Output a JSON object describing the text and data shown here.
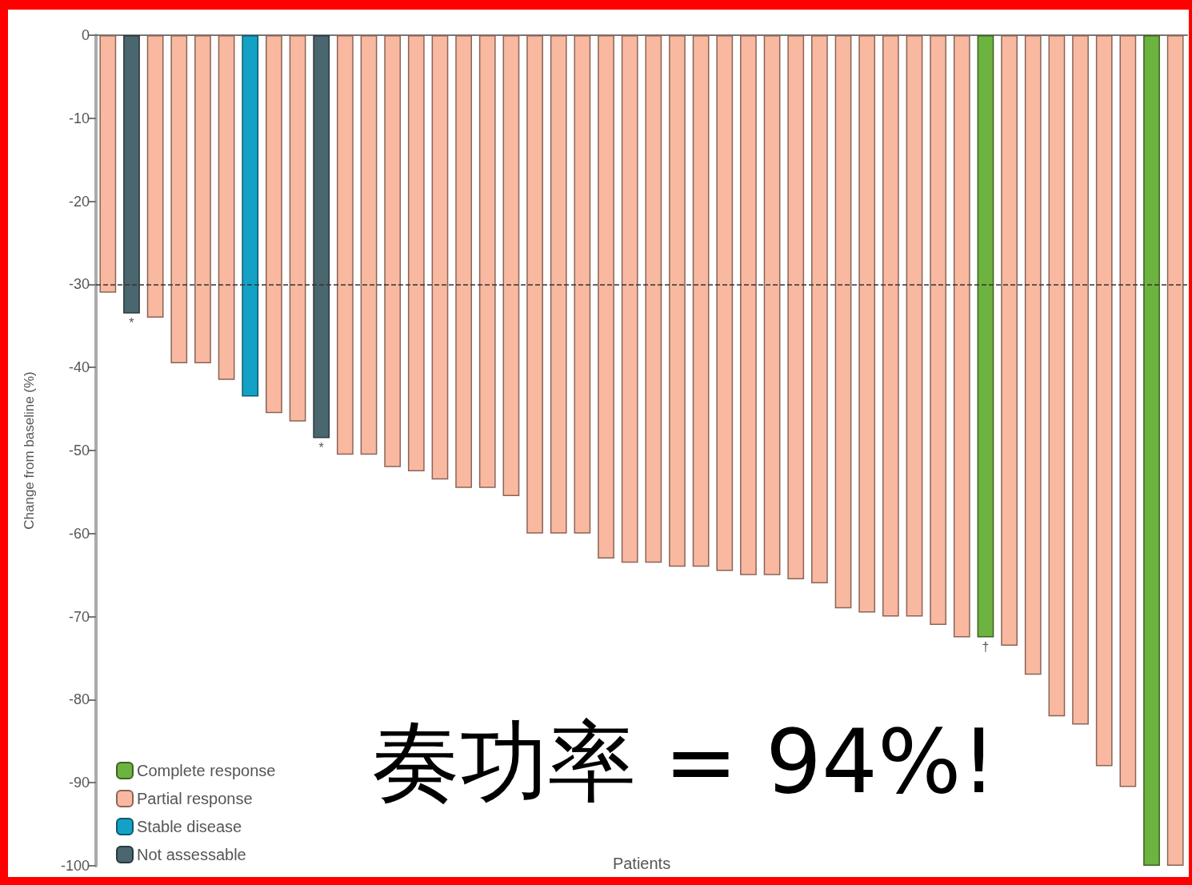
{
  "chart_data": {
    "type": "bar",
    "ylabel": "Change from baseline (%)",
    "xlabel": "Patients",
    "categories": [
      null,
      null,
      null,
      null,
      null,
      null,
      null,
      null,
      null,
      null,
      null,
      null,
      null,
      null,
      null,
      null,
      null,
      null,
      null,
      null,
      null,
      null,
      null,
      null,
      null,
      null,
      null,
      null,
      null,
      null,
      null,
      null,
      null,
      null,
      null,
      null,
      null,
      null,
      null,
      null,
      null,
      null,
      null,
      null,
      null,
      null
    ],
    "series": [
      {
        "name": "Complete response",
        "color": "#6db33f",
        "values": [
          null,
          null,
          null,
          null,
          null,
          null,
          null,
          null,
          null,
          null,
          null,
          null,
          null,
          null,
          null,
          null,
          null,
          null,
          null,
          null,
          null,
          null,
          null,
          null,
          null,
          null,
          null,
          null,
          null,
          null,
          null,
          null,
          null,
          null,
          null,
          null,
          null,
          -72.5,
          null,
          null,
          null,
          null,
          null,
          null,
          -100,
          null
        ],
        "value_labels": [
          null,
          null,
          null,
          null,
          null,
          null,
          null,
          null,
          null,
          null,
          null,
          null,
          null,
          null,
          null,
          null,
          null,
          null,
          null,
          null,
          null,
          null,
          null,
          null,
          null,
          null,
          null,
          null,
          null,
          null,
          null,
          null,
          null,
          null,
          null,
          null,
          null,
          "†",
          null,
          null,
          null,
          null,
          null,
          null,
          null,
          null
        ]
      },
      {
        "name": "Partial response",
        "color": "#f9b8a0",
        "values": [
          -31,
          null,
          -34,
          -39.5,
          -39.5,
          -41.5,
          null,
          -45.5,
          -46.5,
          null,
          -50.5,
          -50.5,
          -52,
          -52.5,
          -53.5,
          -54.5,
          -54.5,
          -55.5,
          -60,
          -60,
          -60,
          -63,
          -63.5,
          -63.5,
          -64,
          -64,
          -64.5,
          -65,
          -65,
          -65.5,
          -66,
          -69,
          -69.5,
          -70,
          -70,
          -71,
          -72.5,
          null,
          -73.5,
          -77,
          -82,
          -83,
          -88,
          -90.5,
          null,
          -100
        ]
      },
      {
        "name": "Stable disease",
        "color": "#13a2c6",
        "values": [
          null,
          null,
          null,
          null,
          null,
          null,
          -43.5,
          null,
          null,
          null,
          null,
          null,
          null,
          null,
          null,
          null,
          null,
          null,
          null,
          null,
          null,
          null,
          null,
          null,
          null,
          null,
          null,
          null,
          null,
          null,
          null,
          null,
          null,
          null,
          null,
          null,
          null,
          null,
          null,
          null,
          null,
          null,
          null,
          null,
          null,
          null
        ]
      },
      {
        "name": "Not assessable",
        "color": "#4a666e",
        "values": [
          null,
          -33.5,
          null,
          null,
          null,
          null,
          null,
          null,
          null,
          -48.5,
          null,
          null,
          null,
          null,
          null,
          null,
          null,
          null,
          null,
          null,
          null,
          null,
          null,
          null,
          null,
          null,
          null,
          null,
          null,
          null,
          null,
          null,
          null,
          null,
          null,
          null,
          null,
          null,
          null,
          null,
          null,
          null,
          null,
          null,
          null,
          null
        ],
        "value_labels": [
          null,
          "*",
          null,
          null,
          null,
          null,
          null,
          null,
          null,
          "*",
          null,
          null,
          null,
          null,
          null,
          null,
          null,
          null,
          null,
          null,
          null,
          null,
          null,
          null,
          null,
          null,
          null,
          null,
          null,
          null,
          null,
          null,
          null,
          null,
          null,
          null,
          null,
          null,
          null,
          null,
          null,
          null,
          null,
          null,
          null,
          null
        ]
      }
    ],
    "ylim": [
      -100,
      0
    ],
    "yticks": [
      0,
      -10,
      -20,
      -30,
      -40,
      -50,
      -60,
      -70,
      -80,
      -90,
      -100
    ],
    "ref_lines": [
      {
        "axis": "y",
        "value": -30,
        "line_style": "dashed",
        "color": "#333333"
      }
    ],
    "annotations": [
      "奏功率 = 94%!"
    ],
    "legend": "bottom left",
    "grid": false,
    "tick_labels": "y"
  }
}
